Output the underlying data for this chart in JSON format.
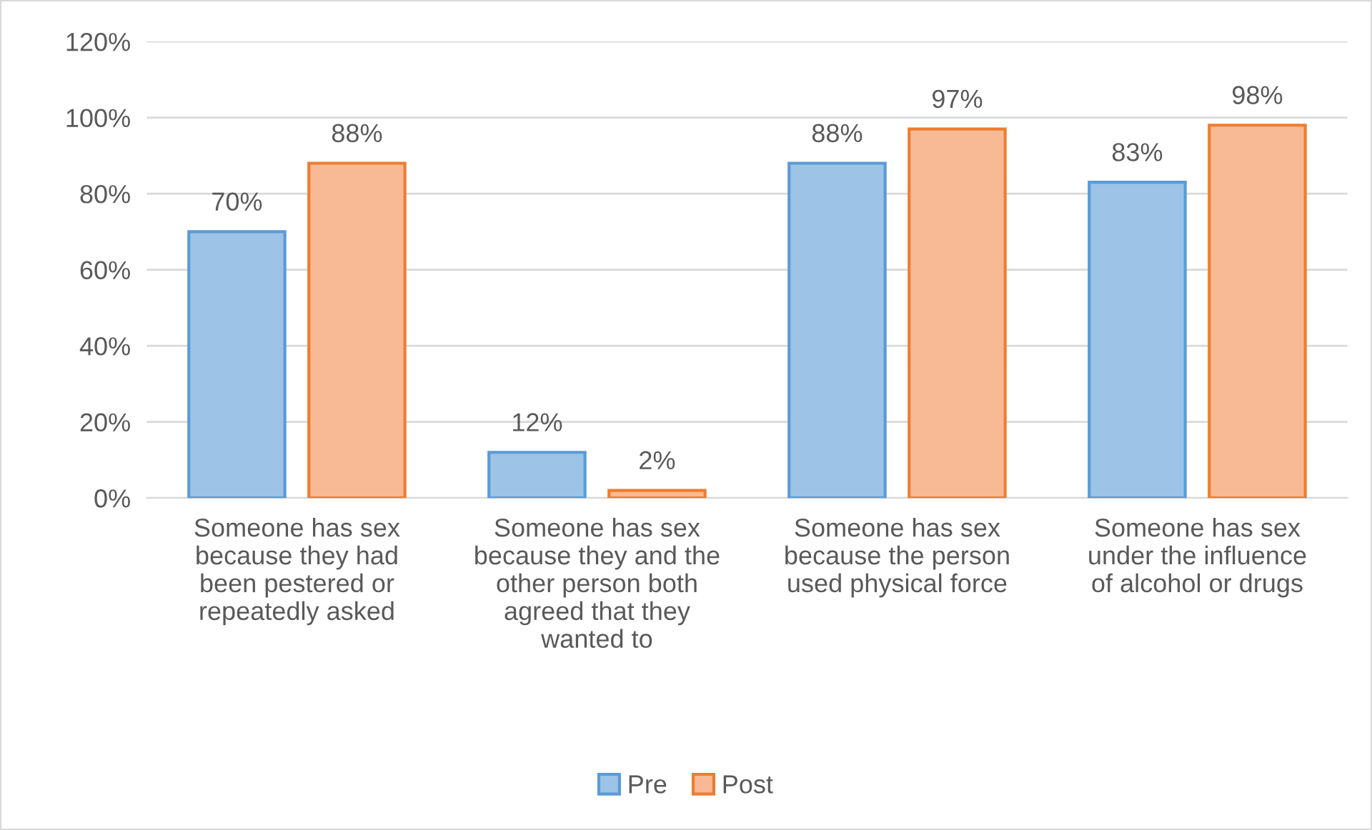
{
  "chart_data": {
    "type": "bar",
    "categories": [
      "Someone has sex\nbecause they had\nbeen pestered or\nrepeatedly asked",
      "Someone has sex\nbecause they and the\nother person both\nagreed that they\nwanted to",
      "Someone has sex\nbecause the person\nused physical force",
      "Someone has sex\nunder the influence\nof alcohol or drugs"
    ],
    "series": [
      {
        "name": "Pre",
        "color": "#9dc3e6",
        "values": [
          70,
          12,
          88,
          83
        ],
        "value_labels": [
          "70%",
          "12%",
          "88%",
          "83%"
        ]
      },
      {
        "name": "Post",
        "color": "#f8b995",
        "values": [
          88,
          2,
          97,
          98
        ],
        "value_labels": [
          "88%",
          "2%",
          "97%",
          "98%"
        ]
      }
    ],
    "ylim": [
      0,
      120
    ],
    "yticks": [
      {
        "value": 0,
        "label": "0%"
      },
      {
        "value": 20,
        "label": "20%"
      },
      {
        "value": 40,
        "label": "40%"
      },
      {
        "value": 60,
        "label": "60%"
      },
      {
        "value": 80,
        "label": "80%"
      },
      {
        "value": 100,
        "label": "100%"
      },
      {
        "value": 120,
        "label": "120%"
      }
    ],
    "grid": "y",
    "legend": "bottom"
  }
}
